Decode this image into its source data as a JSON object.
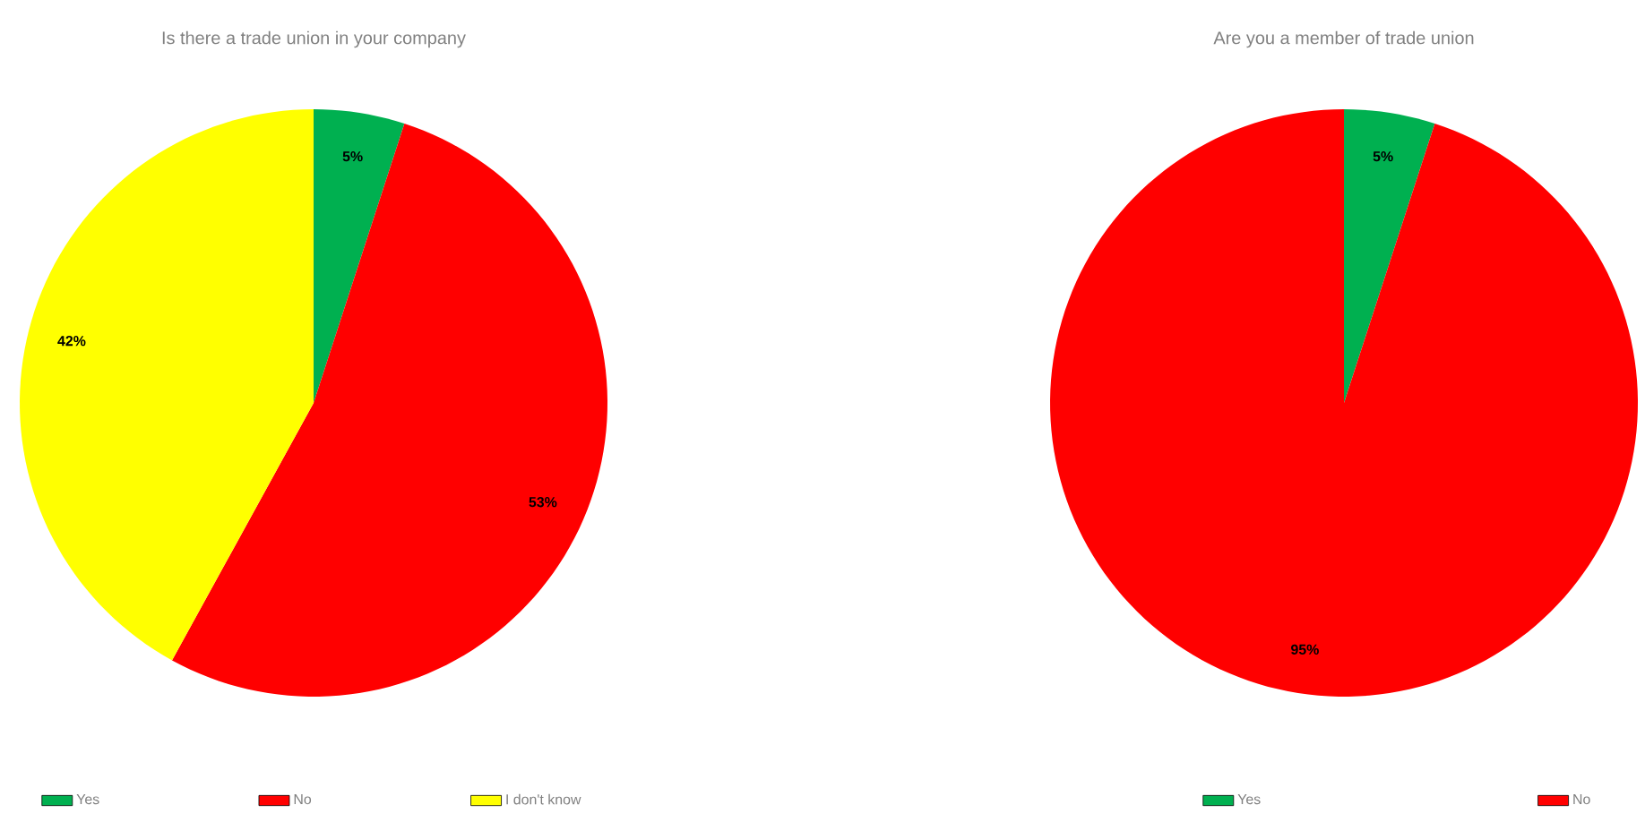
{
  "chart_data": [
    {
      "type": "pie",
      "title": "Is there a trade union in your company",
      "categories": [
        "Yes",
        "No",
        "I don't know"
      ],
      "values": [
        5,
        53,
        42
      ],
      "value_labels": [
        "5%",
        "53%",
        "42%"
      ],
      "colors": [
        "#00b050",
        "#ff0000",
        "#ffff00"
      ],
      "legend": "bottom"
    },
    {
      "type": "pie",
      "title": "Are you a member of trade union",
      "categories": [
        "Yes",
        "No"
      ],
      "values": [
        5,
        95
      ],
      "value_labels": [
        "5%",
        "95%"
      ],
      "colors": [
        "#00b050",
        "#ff0000"
      ],
      "legend": "bottom"
    }
  ]
}
